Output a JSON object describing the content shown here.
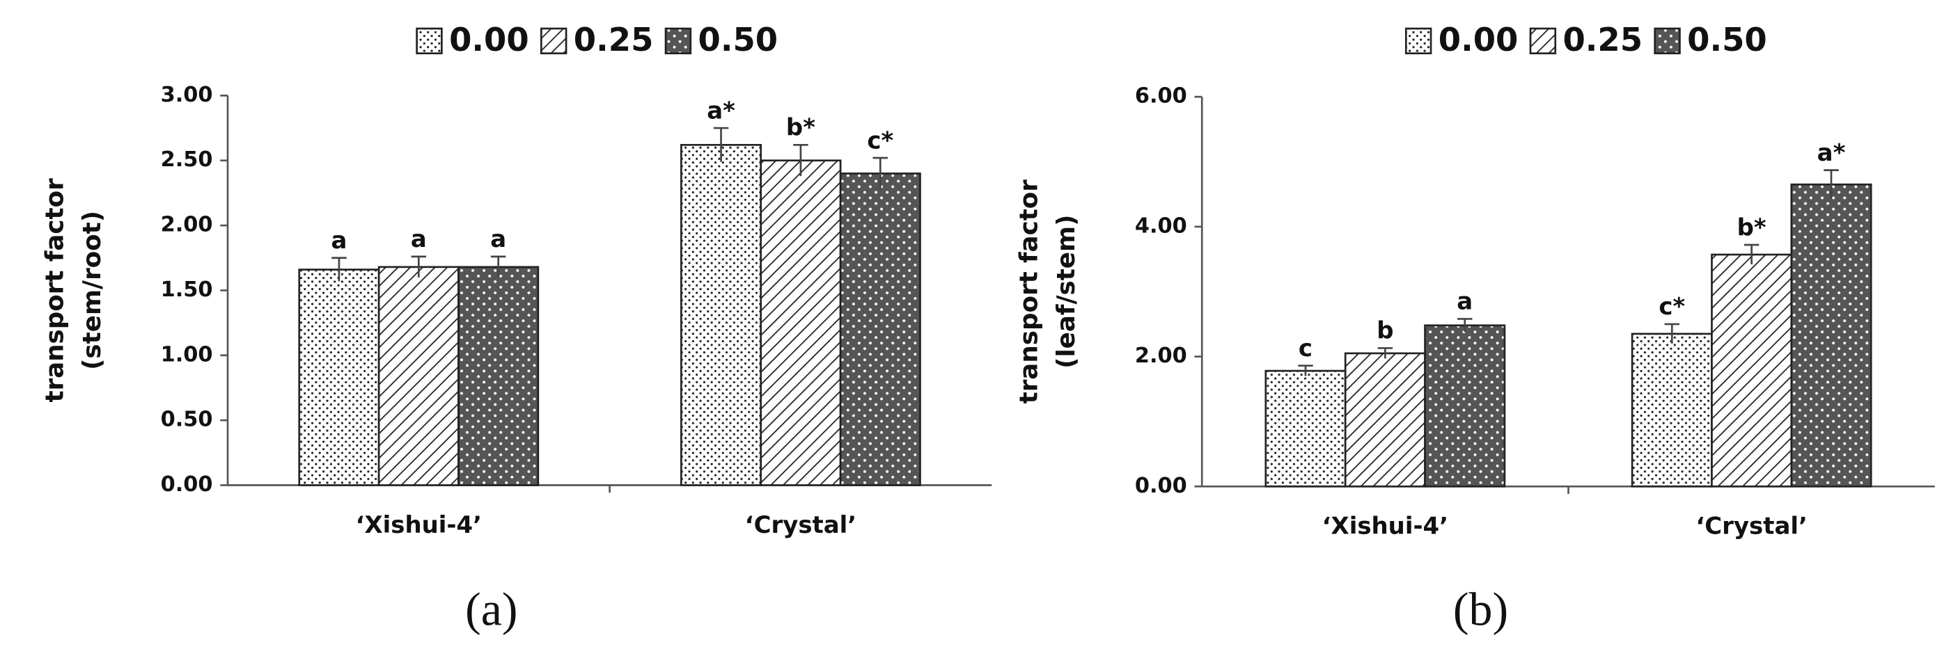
{
  "chart_data": [
    {
      "type": "bar",
      "panel_label": "(a)",
      "ylabel": [
        "transport factor",
        "(stem/root)"
      ],
      "categories": [
        "‘Xishui-4’",
        "‘Crystal’"
      ],
      "series": [
        {
          "name": "0.00",
          "color": "#ffffff",
          "pattern": "dots",
          "values": [
            1.66,
            2.62
          ],
          "errors": [
            0.09,
            0.13
          ],
          "letters": [
            "a",
            "a*"
          ]
        },
        {
          "name": "0.25",
          "color": "#ffffff",
          "pattern": "hatch",
          "values": [
            1.68,
            2.5
          ],
          "errors": [
            0.08,
            0.12
          ],
          "letters": [
            "a",
            "b*"
          ]
        },
        {
          "name": "0.50",
          "color": "#555555",
          "pattern": "dark-dots",
          "values": [
            1.68,
            2.4
          ],
          "errors": [
            0.08,
            0.12
          ],
          "letters": [
            "a",
            "c*"
          ]
        }
      ],
      "ylim": [
        0,
        3
      ],
      "yticks": [
        {
          "value": 0,
          "label": "0.00"
        },
        {
          "value": 0.5,
          "label": "0.50"
        },
        {
          "value": 1,
          "label": "1.00"
        },
        {
          "value": 1.5,
          "label": "1.50"
        },
        {
          "value": 2,
          "label": "2.00"
        },
        {
          "value": 2.5,
          "label": "2.50"
        },
        {
          "value": 3,
          "label": "3.00"
        }
      ],
      "legend": "top",
      "grid": false
    },
    {
      "type": "bar",
      "panel_label": "(b)",
      "ylabel": [
        "transport factor",
        "(leaf/stem)"
      ],
      "categories": [
        "‘Xishui-4’",
        "‘Crystal’"
      ],
      "series": [
        {
          "name": "0.00",
          "color": "#ffffff",
          "pattern": "dots",
          "values": [
            1.78,
            2.35
          ],
          "errors": [
            0.08,
            0.15
          ],
          "letters": [
            "c",
            "c*"
          ]
        },
        {
          "name": "0.25",
          "color": "#ffffff",
          "pattern": "hatch",
          "values": [
            2.05,
            3.57
          ],
          "errors": [
            0.08,
            0.15
          ],
          "letters": [
            "b",
            "b*"
          ]
        },
        {
          "name": "0.50",
          "color": "#555555",
          "pattern": "dark-dots",
          "values": [
            2.48,
            4.65
          ],
          "errors": [
            0.1,
            0.22
          ],
          "letters": [
            "a",
            "a*"
          ]
        }
      ],
      "ylim": [
        0,
        6
      ],
      "yticks": [
        {
          "value": 0,
          "label": "0.00"
        },
        {
          "value": 2,
          "label": "2.00"
        },
        {
          "value": 4,
          "label": "4.00"
        },
        {
          "value": 6,
          "label": "6.00"
        }
      ],
      "legend": "top",
      "grid": false
    }
  ]
}
